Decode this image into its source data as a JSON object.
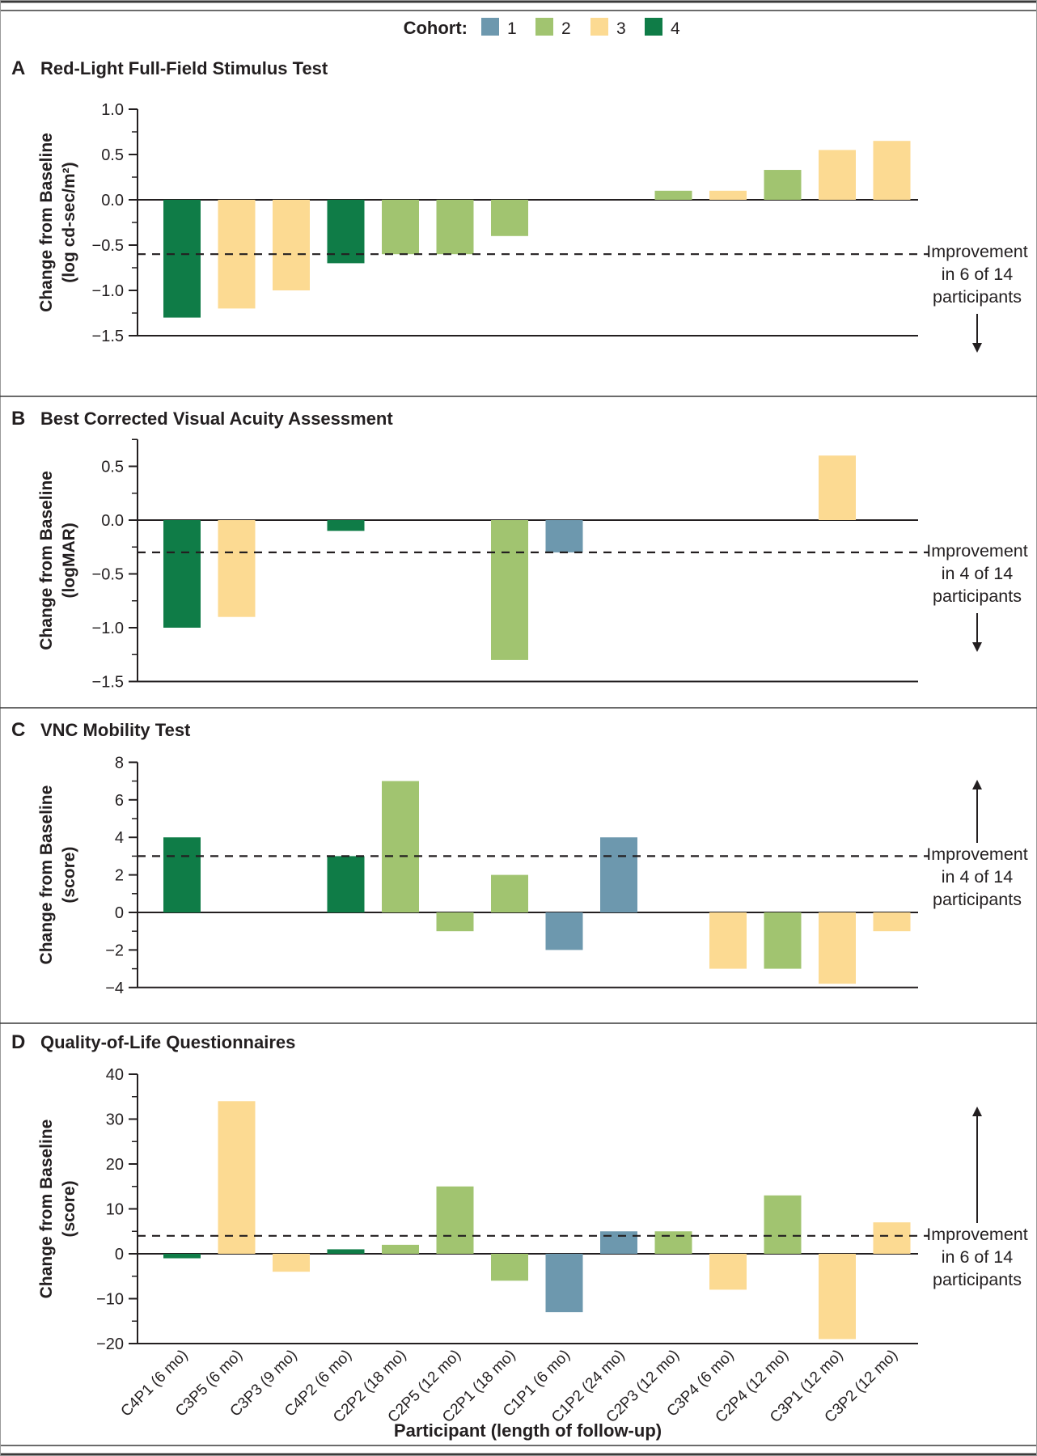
{
  "figure": {
    "legend": {
      "label": "Cohort:",
      "items": [
        {
          "label": "1",
          "color": "#6d98ae"
        },
        {
          "label": "2",
          "color": "#a1c470"
        },
        {
          "label": "3",
          "color": "#fcda92"
        },
        {
          "label": "4",
          "color": "#0f7c47"
        }
      ]
    },
    "x_axis": {
      "title": "Participant (length of follow-up)",
      "participants": [
        "C4P1 (6 mo)",
        "C3P5 (6 mo)",
        "C3P3 (9 mo)",
        "C4P2 (6 mo)",
        "C2P2 (18 mo)",
        "C2P5 (12 mo)",
        "C2P1 (18 mo)",
        "C1P1 (6 mo)",
        "C1P2 (24 mo)",
        "C2P3 (12 mo)",
        "C3P4 (6 mo)",
        "C2P4 (12 mo)",
        "C3P1 (12 mo)",
        "C3P2 (12 mo)"
      ],
      "participant_cohorts": [
        4,
        3,
        3,
        4,
        2,
        2,
        2,
        1,
        1,
        2,
        3,
        2,
        3,
        3
      ]
    },
    "colors": {
      "axis": "#231f20",
      "frame": "#3a3a3a",
      "side_border": "#9a9a9a"
    }
  },
  "chart_data": [
    {
      "type": "bar",
      "panel_letter": "A",
      "title": "Red-Light Full-Field Stimulus Test",
      "ylabel_line1": "Change from Baseline",
      "ylabel_line2": "(log cd-sec/m²)",
      "ylim": [
        -1.5,
        1.0
      ],
      "yticks": [
        1.0,
        0.5,
        0.0,
        -0.5,
        -1.0,
        -1.5
      ],
      "tick_labels": [
        "1.0",
        "0.5",
        "0.0",
        "−0.5",
        "−1.0",
        "−1.5"
      ],
      "minor_tick_step": 0.25,
      "grid": false,
      "values": [
        -1.3,
        -1.2,
        -1.0,
        -0.7,
        -0.6,
        -0.6,
        -0.4,
        null,
        null,
        0.1,
        0.1,
        0.33,
        0.55,
        0.65
      ],
      "dashed_line_y": -0.6,
      "annotation_lines": [
        "Improvement",
        "in 6 of 14",
        "participants"
      ],
      "arrow_direction": "down"
    },
    {
      "type": "bar",
      "panel_letter": "B",
      "title": "Best Corrected Visual Acuity Assessment",
      "ylabel_line1": "Change from Baseline",
      "ylabel_line2": "(logMAR)",
      "ylim": [
        -1.5,
        0.75
      ],
      "yticks": [
        0.5,
        0.0,
        -0.5,
        -1.0,
        -1.5
      ],
      "tick_labels": [
        "0.5",
        "0.0",
        "−0.5",
        "−1.0",
        "−1.5"
      ],
      "minor_tick_step": 0.25,
      "grid": false,
      "values": [
        -1.0,
        -0.9,
        null,
        -0.1,
        null,
        null,
        -1.3,
        -0.3,
        null,
        null,
        null,
        null,
        0.6,
        null
      ],
      "dashed_line_y": -0.3,
      "annotation_lines": [
        "Improvement",
        "in 4 of 14",
        "participants"
      ],
      "arrow_direction": "down"
    },
    {
      "type": "bar",
      "panel_letter": "C",
      "title": "VNC Mobility Test",
      "ylabel_line1": "Change from Baseline",
      "ylabel_line2": "(score)",
      "ylim": [
        -4,
        8
      ],
      "yticks": [
        8,
        6,
        4,
        2,
        0,
        -2,
        -4
      ],
      "tick_labels": [
        "8",
        "6",
        "4",
        "2",
        "0",
        "−2",
        "−4"
      ],
      "minor_tick_step": 1,
      "grid": false,
      "values": [
        4,
        null,
        null,
        3,
        7,
        -1,
        2,
        -2,
        4,
        null,
        -3,
        -3,
        -3.8,
        -1
      ],
      "dashed_line_y": 3,
      "annotation_lines": [
        "Improvement",
        "in 4 of 14",
        "participants"
      ],
      "arrow_direction": "up"
    },
    {
      "type": "bar",
      "panel_letter": "D",
      "title": "Quality-of-Life Questionnaires",
      "ylabel_line1": "Change from Baseline",
      "ylabel_line2": "(score)",
      "ylim": [
        -20,
        40
      ],
      "yticks": [
        40,
        30,
        20,
        10,
        0,
        -10,
        -20
      ],
      "tick_labels": [
        "40",
        "30",
        "20",
        "10",
        "0",
        "−10",
        "−20"
      ],
      "minor_tick_step": 5,
      "grid": false,
      "values": [
        -1,
        34,
        -4,
        1,
        2,
        15,
        -6,
        -13,
        5,
        5,
        -8,
        13,
        -19,
        7
      ],
      "dashed_line_y": 4,
      "annotation_lines": [
        "Improvement",
        "in 6 of 14",
        "participants"
      ],
      "arrow_direction": "up"
    }
  ]
}
